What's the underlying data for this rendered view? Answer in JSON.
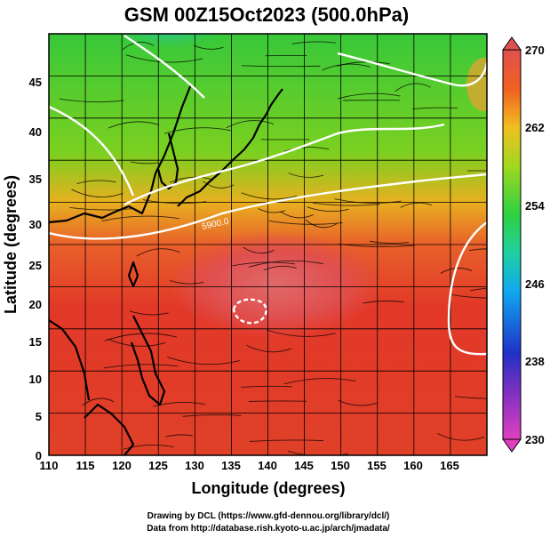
{
  "title": "GSM 00Z15Oct2023 (500.0hPa)",
  "x_axis": {
    "label": "Longitude (degrees)",
    "ticks": [
      "110",
      "115",
      "120",
      "125",
      "130",
      "135",
      "140",
      "145",
      "150",
      "155",
      "160",
      "165"
    ]
  },
  "y_axis": {
    "label": "Latitude (degrees)",
    "ticks": [
      "0",
      "5",
      "10",
      "15",
      "20",
      "25",
      "30",
      "35",
      "40",
      "45"
    ]
  },
  "colorbar": {
    "ticks": [
      "230",
      "238",
      "246",
      "254",
      "262",
      "270"
    ],
    "colors": [
      "#e040c0",
      "#7030d0",
      "#1830c8",
      "#10b0f0",
      "#30d060",
      "#60d020",
      "#f0e020",
      "#f08020",
      "#e83020",
      "#e06060"
    ]
  },
  "contour_label": "5900.0",
  "credits": {
    "line1": "Drawing by DCL (https://www.gfd-dennou.org/library/dcl/)",
    "line2": "Data from http://database.rish.kyoto-u.ac.jp/arch/jmadata/"
  },
  "chart_data": {
    "type": "heatmap",
    "title": "GSM 00Z15Oct2023 (500.0hPa)",
    "xlabel": "Longitude (degrees)",
    "ylabel": "Latitude (degrees)",
    "xlim": [
      110,
      170
    ],
    "ylim": [
      0,
      50
    ],
    "colorbar_range": [
      230,
      270
    ],
    "overlays": [
      "temperature shading",
      "wind streamlines",
      "geopotential height contours",
      "coastlines",
      "grid"
    ]
  }
}
